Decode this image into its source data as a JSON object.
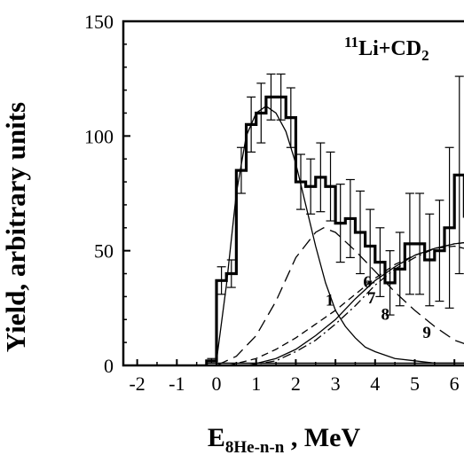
{
  "chart_data": {
    "type": "line",
    "annotation": {
      "sup": "11",
      "text": "Li+CD",
      "sub": "2"
    },
    "xlabel": {
      "main": "E",
      "sub": "8He-n-n",
      "tail": " , MeV"
    },
    "ylabel": "Yield, arbitrary units",
    "xlim": [
      -2.35,
      6.6
    ],
    "ylim": [
      0,
      150
    ],
    "x_ticks": [
      -2,
      -1,
      0,
      1,
      2,
      3,
      4,
      5,
      6
    ],
    "y_ticks": [
      0,
      50,
      100,
      150
    ],
    "histogram": {
      "bin_width": 0.25,
      "bin_starts": [
        -0.25,
        0,
        0.25,
        0.5,
        0.75,
        1.0,
        1.25,
        1.5,
        1.75,
        2.0,
        2.25,
        2.5,
        2.75,
        3.0,
        3.25,
        3.5,
        3.75,
        4.0,
        4.25,
        4.5,
        4.75,
        5.0,
        5.25,
        5.5,
        5.75,
        6.0,
        6.25
      ],
      "values": [
        2,
        37,
        40,
        85,
        105,
        110,
        117,
        117,
        108,
        80,
        78,
        82,
        78,
        62,
        64,
        58,
        52,
        45,
        36,
        42,
        53,
        53,
        46,
        50,
        60,
        83,
        65
      ],
      "errors": [
        1,
        6,
        6,
        10,
        12,
        13,
        10,
        10,
        13,
        12,
        12,
        15,
        15,
        17,
        17,
        18,
        16,
        15,
        14,
        16,
        22,
        22,
        20,
        22,
        35,
        43,
        40
      ]
    },
    "series": [
      {
        "style": "solid",
        "x": [
          0,
          0.25,
          0.5,
          0.75,
          1.0,
          1.25,
          1.5,
          1.75,
          2.0,
          2.25,
          2.5,
          2.75,
          3.0,
          3.25,
          3.5,
          3.75,
          4.0,
          4.5,
          5.0,
          5.5,
          6.0,
          6.5
        ],
        "y": [
          2,
          35,
          75,
          100,
          110,
          113,
          110,
          102,
          88,
          70,
          52,
          36,
          24,
          17,
          12,
          8,
          6,
          3,
          2,
          1,
          1,
          1
        ]
      },
      {
        "style": "long-dash",
        "x": [
          0,
          0.5,
          1.0,
          1.5,
          2.0,
          2.5,
          2.7,
          3.0,
          3.5,
          4.0,
          4.5,
          5.0,
          5.5,
          6.0,
          6.5
        ],
        "y": [
          0,
          4,
          13,
          28,
          47,
          58,
          60,
          58,
          50,
          41,
          32,
          24,
          17,
          11,
          8
        ]
      },
      {
        "style": "solid",
        "x": [
          0.8,
          1.5,
          2.0,
          2.5,
          3.0,
          3.5,
          4.0,
          4.5,
          5.0,
          5.5,
          6.0,
          6.5
        ],
        "y": [
          0,
          3,
          7,
          13,
          20,
          29,
          37,
          43,
          48,
          51,
          53,
          54
        ]
      },
      {
        "style": "dash",
        "x": [
          0.3,
          1.0,
          1.5,
          2.0,
          2.5,
          3.0,
          3.5,
          4.0,
          4.5,
          5.0,
          5.5,
          6.0,
          6.5
        ],
        "y": [
          0,
          3,
          7,
          12,
          18,
          24,
          31,
          38,
          44,
          48,
          51,
          52,
          50
        ]
      },
      {
        "style": "dash-dot",
        "x": [
          0.8,
          1.5,
          2.0,
          2.5,
          3.0,
          3.5,
          4.0,
          4.5,
          5.0,
          5.5,
          6.0,
          6.5
        ],
        "y": [
          0,
          2,
          6,
          11,
          18,
          26,
          35,
          42,
          47,
          51,
          53,
          54
        ]
      },
      {
        "style": "solid",
        "x": [
          -0.2,
          6.6
        ],
        "y": [
          1,
          1
        ]
      }
    ],
    "curve_labels": [
      {
        "text": "1",
        "x": 2.75,
        "y": 26
      },
      {
        "text": "6",
        "x": 3.7,
        "y": 34
      },
      {
        "text": "7",
        "x": 3.8,
        "y": 27
      },
      {
        "text": "8",
        "x": 4.15,
        "y": 20
      },
      {
        "text": "9",
        "x": 5.2,
        "y": 12
      }
    ]
  }
}
